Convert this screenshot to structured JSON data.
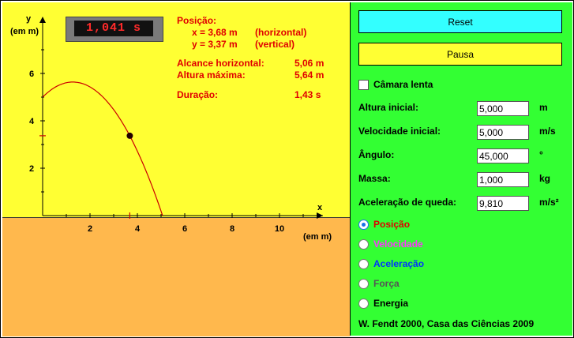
{
  "clock": "1,041 s",
  "info": {
    "position_label": "Posição:",
    "x_line": "x = 3,68 m",
    "x_note": "(horizontal)",
    "y_line": "y = 3,37 m",
    "y_note": "(vertical)",
    "range_label": "Alcance horizontal:",
    "range_value": "5,06 m",
    "height_label": "Altura máxima:",
    "height_value": "5,64 m",
    "duration_label": "Duração:",
    "duration_value": "1,43 s"
  },
  "axes": {
    "y_label": "y",
    "y_unit": "(em m)",
    "x_label": "x",
    "x_unit": "(em m)",
    "x_ticks": [
      "2",
      "4",
      "6",
      "8",
      "10"
    ],
    "y_ticks": [
      "2",
      "4",
      "6"
    ]
  },
  "trajectory": {
    "initial_height": 5.0,
    "max_height": 5.64,
    "range": 5.06,
    "current_x": 3.68,
    "current_y": 3.37
  },
  "controls": {
    "reset_label": "Reset",
    "pause_label": "Pausa",
    "slow_motion_label": "Câmara lenta",
    "fields": [
      {
        "label": "Altura inicial:",
        "value": "5,000",
        "unit": "m"
      },
      {
        "label": "Velocidade inicial:",
        "value": "5,000",
        "unit": "m/s"
      },
      {
        "label": "Ângulo:",
        "value": "45,000",
        "unit": "°"
      },
      {
        "label": "Massa:",
        "value": "1,000",
        "unit": "kg"
      },
      {
        "label": "Aceleração de queda:",
        "value": "9,810",
        "unit": "m/s²"
      }
    ],
    "radios": [
      {
        "label": "Posição",
        "color": "#e00000",
        "selected": true
      },
      {
        "label": "Velocidade",
        "color": "#ff33ff",
        "selected": false
      },
      {
        "label": "Aceleração",
        "color": "#0033ff",
        "selected": false
      },
      {
        "label": "Força",
        "color": "#555555",
        "selected": false
      },
      {
        "label": "Energia",
        "color": "#000000",
        "selected": false
      }
    ]
  },
  "credit": "W. Fendt 2000,  Casa das Ciências 2009",
  "colors": {
    "sky": "#ffff33",
    "ground": "#ffb84d",
    "panel": "#33ff33",
    "trajectory": "#cc0000"
  }
}
